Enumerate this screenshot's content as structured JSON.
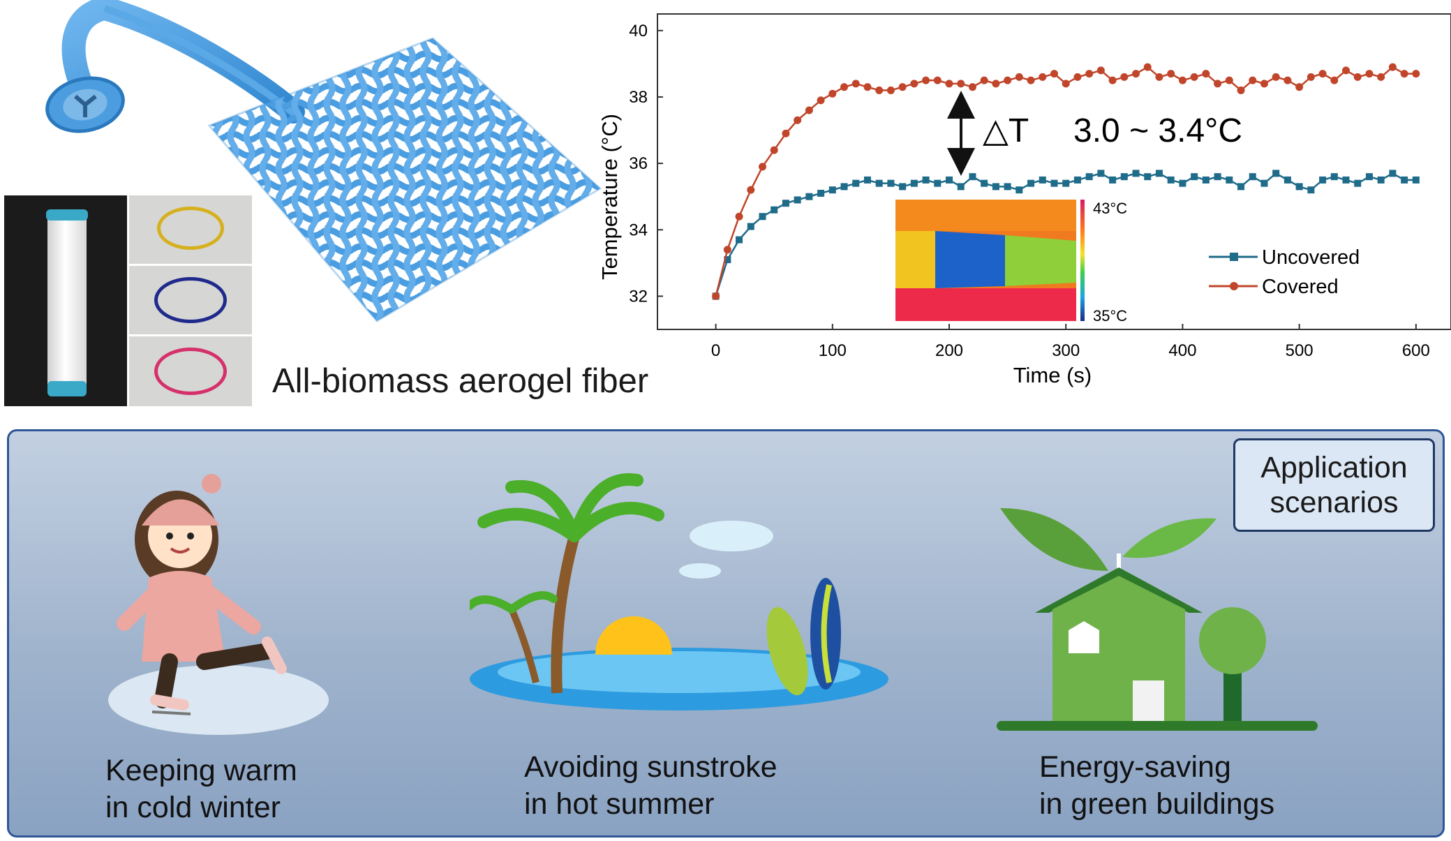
{
  "fiber_label": "All-biomass aerogel fiber",
  "annotation": {
    "delta_symbol": "△T",
    "range_text": "3.0 ~ 3.4°C"
  },
  "inset": {
    "max_label": "43°C",
    "min_label": "35°C"
  },
  "chart_data": {
    "type": "line",
    "xlabel": "Time (s)",
    "ylabel": "Temperature (°C)",
    "xlim": [
      -50,
      630
    ],
    "ylim": [
      31,
      40.5
    ],
    "xticks": [
      0,
      100,
      200,
      300,
      400,
      500,
      600
    ],
    "yticks": [
      32,
      34,
      36,
      38,
      40
    ],
    "legend": "right",
    "x": [
      0,
      10,
      20,
      30,
      40,
      50,
      60,
      70,
      80,
      90,
      100,
      110,
      120,
      130,
      140,
      150,
      160,
      170,
      180,
      190,
      200,
      210,
      220,
      230,
      240,
      250,
      260,
      270,
      280,
      290,
      300,
      310,
      320,
      330,
      340,
      350,
      360,
      370,
      380,
      390,
      400,
      410,
      420,
      430,
      440,
      450,
      460,
      470,
      480,
      490,
      500,
      510,
      520,
      530,
      540,
      550,
      560,
      570,
      580,
      590,
      600
    ],
    "series": [
      {
        "name": "Uncovered",
        "color": "#1f6b8a",
        "marker": "square",
        "values": [
          32.0,
          33.1,
          33.7,
          34.1,
          34.4,
          34.6,
          34.8,
          34.9,
          35.0,
          35.1,
          35.2,
          35.3,
          35.4,
          35.5,
          35.4,
          35.4,
          35.3,
          35.4,
          35.5,
          35.4,
          35.5,
          35.3,
          35.6,
          35.4,
          35.3,
          35.3,
          35.2,
          35.4,
          35.5,
          35.4,
          35.4,
          35.5,
          35.6,
          35.7,
          35.5,
          35.6,
          35.7,
          35.6,
          35.7,
          35.5,
          35.4,
          35.6,
          35.5,
          35.6,
          35.5,
          35.3,
          35.6,
          35.4,
          35.7,
          35.5,
          35.3,
          35.2,
          35.5,
          35.6,
          35.5,
          35.4,
          35.6,
          35.5,
          35.7,
          35.5,
          35.5
        ]
      },
      {
        "name": "Covered",
        "color": "#c0452a",
        "marker": "circle",
        "values": [
          32.0,
          33.4,
          34.4,
          35.2,
          35.9,
          36.4,
          36.9,
          37.3,
          37.6,
          37.9,
          38.1,
          38.3,
          38.4,
          38.3,
          38.2,
          38.2,
          38.3,
          38.4,
          38.5,
          38.5,
          38.4,
          38.4,
          38.3,
          38.5,
          38.4,
          38.5,
          38.6,
          38.5,
          38.6,
          38.7,
          38.4,
          38.6,
          38.7,
          38.8,
          38.5,
          38.6,
          38.7,
          38.9,
          38.6,
          38.7,
          38.5,
          38.6,
          38.7,
          38.4,
          38.5,
          38.2,
          38.5,
          38.4,
          38.6,
          38.5,
          38.3,
          38.6,
          38.7,
          38.5,
          38.8,
          38.6,
          38.7,
          38.6,
          38.9,
          38.7,
          38.7
        ]
      }
    ]
  },
  "application_box": {
    "line1": "Application",
    "line2": "scenarios"
  },
  "scenarios": [
    {
      "line1": "Keeping warm",
      "line2": "in cold winter"
    },
    {
      "line1": "Avoiding sunstroke",
      "line2": "in hot summer"
    },
    {
      "line1": "Energy-saving",
      "line2": "in green buildings"
    }
  ]
}
